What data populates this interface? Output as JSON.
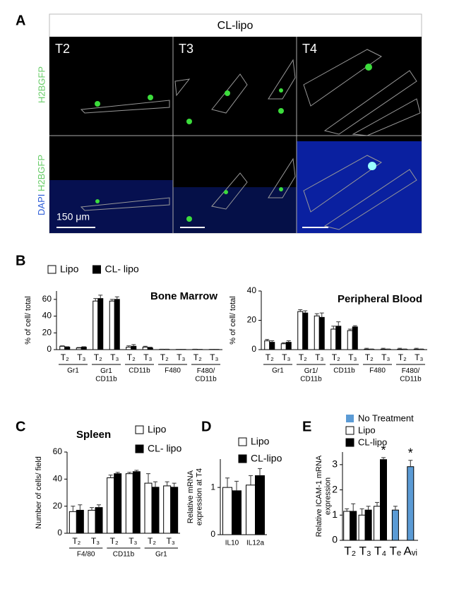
{
  "figure": {
    "panels": [
      "A",
      "B",
      "C",
      "D",
      "E"
    ],
    "panel_a": {
      "title": "CL-lipo",
      "columns": [
        "T2",
        "T3",
        "T4"
      ],
      "row_label_top": "H2BGFP",
      "row_label_bottom": [
        "DAPI",
        "H2BGFP"
      ],
      "scale_bar": "150 μm"
    }
  },
  "chart_data": [
    {
      "type": "bar",
      "title": "Bone Marrow",
      "ylabel": "% of cell/ total",
      "categories": [
        "T₂",
        "T₃",
        "T₂",
        "T₃",
        "T₂",
        "T₃",
        "T₂",
        "T₃",
        "T₂",
        "T₃"
      ],
      "groups": [
        "Gr1",
        "Gr1\nCD11b",
        "CD11b",
        "F480",
        "F480/\nCD11b"
      ],
      "series": [
        {
          "name": "Lipo",
          "color": "#ffffff",
          "values": [
            4,
            2,
            58,
            58,
            3,
            3,
            0.3,
            0.2,
            0.3,
            0.2
          ],
          "errors": [
            0.5,
            0.5,
            3,
            2,
            1.5,
            1,
            0.2,
            0.2,
            0.2,
            0.2
          ]
        },
        {
          "name": "CL- lipo",
          "color": "#000000",
          "values": [
            3,
            3,
            61,
            60,
            4,
            2,
            0.3,
            0.2,
            0.2,
            0.2
          ],
          "errors": [
            0.5,
            0.5,
            4,
            3,
            2,
            1,
            0.2,
            0.2,
            0.2,
            0.2
          ]
        }
      ],
      "ylim": [
        0,
        70
      ],
      "yticks": [
        0,
        20,
        40,
        60
      ]
    },
    {
      "type": "bar",
      "title": "Peripheral Blood",
      "ylabel": "% of cell/ total",
      "categories": [
        "T₂",
        "T₃",
        "T₂",
        "T₃",
        "T₂",
        "T₃",
        "T₂",
        "T₃",
        "T₂",
        "T₃"
      ],
      "groups": [
        "Gr1",
        "Gr1/\nCD11b",
        "CD11b",
        "F480",
        "F480/\nCD11b"
      ],
      "series": [
        {
          "color": "#ffffff",
          "values": [
            6,
            4,
            26,
            23,
            14,
            13,
            0.3,
            0.3,
            0.3,
            0.3
          ],
          "errors": [
            1,
            0.7,
            1.2,
            1.5,
            2,
            1,
            0.6,
            0.6,
            0.6,
            0.6
          ]
        },
        {
          "color": "#000000",
          "values": [
            5,
            5,
            25,
            22,
            16,
            15.5,
            0.2,
            0.2,
            0.2,
            0.2
          ],
          "errors": [
            1,
            1,
            1.5,
            3,
            3,
            0.8,
            0.2,
            0.2,
            0.2,
            0.2
          ]
        }
      ],
      "ylim": [
        0,
        40
      ],
      "yticks": [
        0,
        20,
        40
      ]
    },
    {
      "type": "bar",
      "title": "Spleen",
      "ylabel": "Number of cells/ field",
      "categories": [
        "T₂",
        "T₃",
        "T₂",
        "T₃",
        "T₂",
        "T₃"
      ],
      "groups": [
        "F4/80",
        "CD11b",
        "Gr1"
      ],
      "series": [
        {
          "name": "Lipo",
          "color": "#ffffff",
          "values": [
            16,
            17,
            41,
            44,
            37,
            35
          ],
          "errors": [
            4,
            2,
            2,
            1,
            7,
            3
          ]
        },
        {
          "name": "CL- lipo",
          "color": "#000000",
          "values": [
            17,
            19,
            44,
            45.5,
            34,
            34
          ],
          "errors": [
            4,
            2,
            1,
            1,
            4,
            3
          ]
        }
      ],
      "ylim": [
        0,
        60
      ],
      "yticks": [
        0,
        20,
        40,
        60
      ]
    },
    {
      "type": "bar",
      "ylabel": "Relative mRNA\nexpression at T4",
      "categories": [
        "IL10",
        "IL12a"
      ],
      "series": [
        {
          "name": "Lipo",
          "color": "#ffffff",
          "values": [
            1.0,
            1.05
          ],
          "errors": [
            0.2,
            0.2
          ]
        },
        {
          "name": "CL-lipo",
          "color": "#000000",
          "values": [
            0.93,
            1.25
          ],
          "errors": [
            0.2,
            0.15
          ]
        }
      ],
      "ylim": [
        0,
        1.6
      ],
      "yticks": [
        0,
        1
      ]
    },
    {
      "type": "bar",
      "ylabel": "Relative ICAM-1 mRNA\nexpression",
      "categories": [
        "T₂",
        "T₃",
        "T₄",
        "Tₑ",
        "Aᵥᵢ"
      ],
      "series": [
        {
          "name": "No Treatment",
          "color": "#5b9bd5",
          "values": [
            null,
            null,
            null,
            1.2,
            2.92
          ],
          "errors": [
            null,
            null,
            null,
            0.15,
            0.25
          ]
        },
        {
          "name": "Lipo",
          "color": "#ffffff",
          "values": [
            1.15,
            1.0,
            1.35,
            null,
            null
          ],
          "errors": [
            0.1,
            0.25,
            0.15,
            null,
            null
          ]
        },
        {
          "name": "CL-lipo",
          "color": "#000000",
          "values": [
            1.15,
            1.2,
            3.2,
            null,
            null
          ],
          "errors": [
            0.3,
            0.15,
            0.08,
            null,
            null
          ]
        }
      ],
      "annotations": [
        {
          "text": "*",
          "x": "T₄"
        },
        {
          "text": "*",
          "x": "Aᵥᵢ"
        }
      ],
      "ylim": [
        0,
        3.5
      ],
      "yticks": [
        0,
        1,
        2,
        3
      ]
    }
  ]
}
